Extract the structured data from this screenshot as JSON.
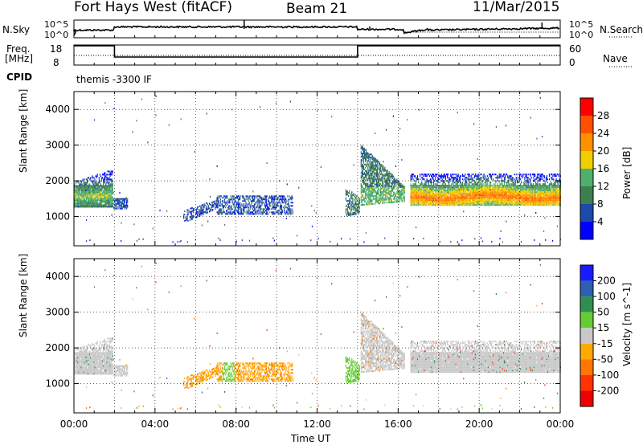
{
  "header": {
    "station": "Fort Hays West (fitACF)",
    "beam": "Beam 21",
    "date": "11/Mar/2015"
  },
  "panels_top": {
    "nsky_label": "N.Sky",
    "nsky_tick_hi": "10^5",
    "nsky_tick_lo": "10^0",
    "nsearch_label": "N.Search",
    "nsearch_tick_hi": "10^5",
    "nsearch_tick_lo": "10^0",
    "freq_label_line1": "Freq.",
    "freq_label_line2": "[MHz]",
    "freq_tick_hi": "18",
    "freq_tick_lo": "8",
    "nave_label": "Nave",
    "nave_tick_hi": "60",
    "nave_tick_lo": "0",
    "cpid_label": "CPID",
    "cpid_value": "themis -3300 IF"
  },
  "axes": {
    "ylabel": "Slant Range [km]",
    "xlabel": "Time UT",
    "yticks": [
      "1000",
      "2000",
      "3000",
      "4000"
    ],
    "xticks": [
      "00:00",
      "04:00",
      "08:00",
      "12:00",
      "16:00",
      "20:00",
      "00:00"
    ]
  },
  "power_scale": {
    "label": "Power [dB]",
    "ticks": [
      "4",
      "8",
      "12",
      "16",
      "20",
      "24",
      "28"
    ],
    "colors": [
      "#0000ff",
      "#1c4aa8",
      "#3f7f4f",
      "#4fb06e",
      "#f0d000",
      "#ff9000",
      "#ff5000",
      "#ff0000"
    ]
  },
  "velocity_scale": {
    "label": "Velocity [m s^-1]",
    "ticks": [
      "200",
      "100",
      "50",
      "15",
      "-15",
      "-50",
      "-100",
      "-200"
    ],
    "colors": [
      "#1a1aff",
      "#2f5fb0",
      "#2f8f4f",
      "#66cc33",
      "#c8c8c8",
      "#ffaa00",
      "#ff7700",
      "#ff3300",
      "#ee0000"
    ]
  },
  "chart_data": [
    {
      "type": "heatmap",
      "name": "Power",
      "xlabel": "Time UT",
      "ylabel": "Slant Range [km]",
      "xlim": [
        "00:00",
        "24:00"
      ],
      "ylim": [
        180,
        4500
      ],
      "colorbar": {
        "label": "Power [dB]",
        "range": [
          0,
          30
        ]
      },
      "regions": [
        {
          "t": [
            0.0,
            1.9
          ],
          "range_km": [
            1250,
            2300
          ],
          "dominant_value": 12
        },
        {
          "t": [
            1.9,
            2.6
          ],
          "range_km": [
            1200,
            1500
          ],
          "dominant_value": 6
        },
        {
          "t": [
            5.4,
            10.8
          ],
          "range_km": [
            800,
            1600
          ],
          "dominant_value": 5
        },
        {
          "t": [
            13.4,
            14.1
          ],
          "range_km": [
            1000,
            1500
          ],
          "dominant_value": 8
        },
        {
          "t": [
            14.2,
            16.3
          ],
          "range_km": [
            1300,
            3000
          ],
          "dominant_value": 12
        },
        {
          "t": [
            16.6,
            24.0
          ],
          "range_km": [
            1300,
            2200
          ],
          "dominant_value": 20
        }
      ]
    },
    {
      "type": "heatmap",
      "name": "Velocity",
      "xlabel": "Time UT",
      "ylabel": "Slant Range [km]",
      "xlim": [
        "00:00",
        "24:00"
      ],
      "ylim": [
        180,
        4500
      ],
      "colorbar": {
        "label": "Velocity [m s^-1]",
        "range": [
          -200,
          200
        ]
      },
      "regions": [
        {
          "t": [
            0.0,
            2.6
          ],
          "range_km": [
            1250,
            2300
          ],
          "dominant_value": 0
        },
        {
          "t": [
            5.4,
            7.0
          ],
          "range_km": [
            800,
            1500
          ],
          "dominant_value": -60
        },
        {
          "t": [
            7.0,
            10.8
          ],
          "range_km": [
            1100,
            1500
          ],
          "dominant_value": -50
        },
        {
          "t": [
            13.4,
            14.1
          ],
          "range_km": [
            1000,
            1500
          ],
          "dominant_value": 40
        },
        {
          "t": [
            14.2,
            16.3
          ],
          "range_km": [
            1300,
            3000
          ],
          "dominant_value": 0
        },
        {
          "t": [
            16.6,
            24.0
          ],
          "range_km": [
            1300,
            2200
          ],
          "dominant_value": 0
        }
      ]
    }
  ]
}
